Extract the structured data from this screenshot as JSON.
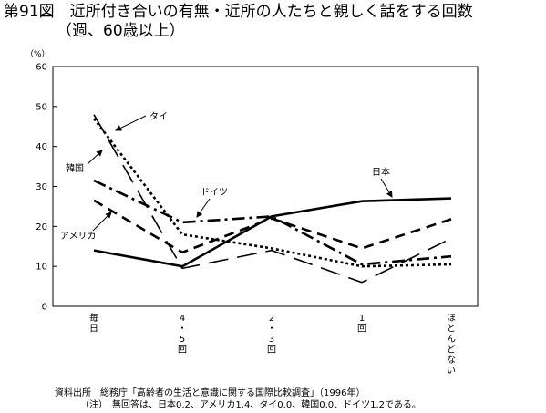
{
  "title_line1": "第91図　近所付き合いの有無・近所の人たちと親しく話をする回数",
  "title_line2": "（週、60歳以上）",
  "source": "資料出所　総務庁「高齢者の生活と意識に関する国際比較調査」（1996年）",
  "note": "（注）　無回答は、日本0.2、アメリカ1.4、タイ0.0、韓国0.0、ドイツ1.2である。",
  "chart_data": {
    "type": "line",
    "unit_label": "（%）",
    "ylim": [
      0,
      60
    ],
    "yticks": [
      "0",
      "10",
      "20",
      "30",
      "40",
      "50",
      "60"
    ],
    "grid": false,
    "categories": [
      "毎日",
      "4・5回",
      "2・3回",
      "1回",
      "ほとんどない"
    ],
    "category_labels_vertical": [
      "毎\n日",
      "4\n・\n5\n回",
      "2\n・\n3\n回",
      "1\n回",
      "ほ\nと\nん\nど\nな\nい"
    ],
    "series": [
      {
        "name": "日本",
        "values": [
          14.0,
          10.0,
          22.5,
          26.3,
          27.0
        ],
        "style": "solid",
        "color": "#000000"
      },
      {
        "name": "アメリカ",
        "values": [
          26.5,
          13.5,
          22.0,
          14.5,
          21.8
        ],
        "style": "dash",
        "color": "#000000"
      },
      {
        "name": "タイ",
        "values": [
          48.0,
          9.5,
          14.0,
          6.0,
          17.0
        ],
        "style": "longdash",
        "color": "#000000"
      },
      {
        "name": "韓国",
        "values": [
          47.0,
          18.0,
          14.5,
          10.0,
          10.5
        ],
        "style": "dot",
        "color": "#000000"
      },
      {
        "name": "ドイツ",
        "values": [
          31.5,
          21.0,
          22.5,
          10.5,
          12.5
        ],
        "style": "dashdot",
        "color": "#000000"
      }
    ]
  }
}
